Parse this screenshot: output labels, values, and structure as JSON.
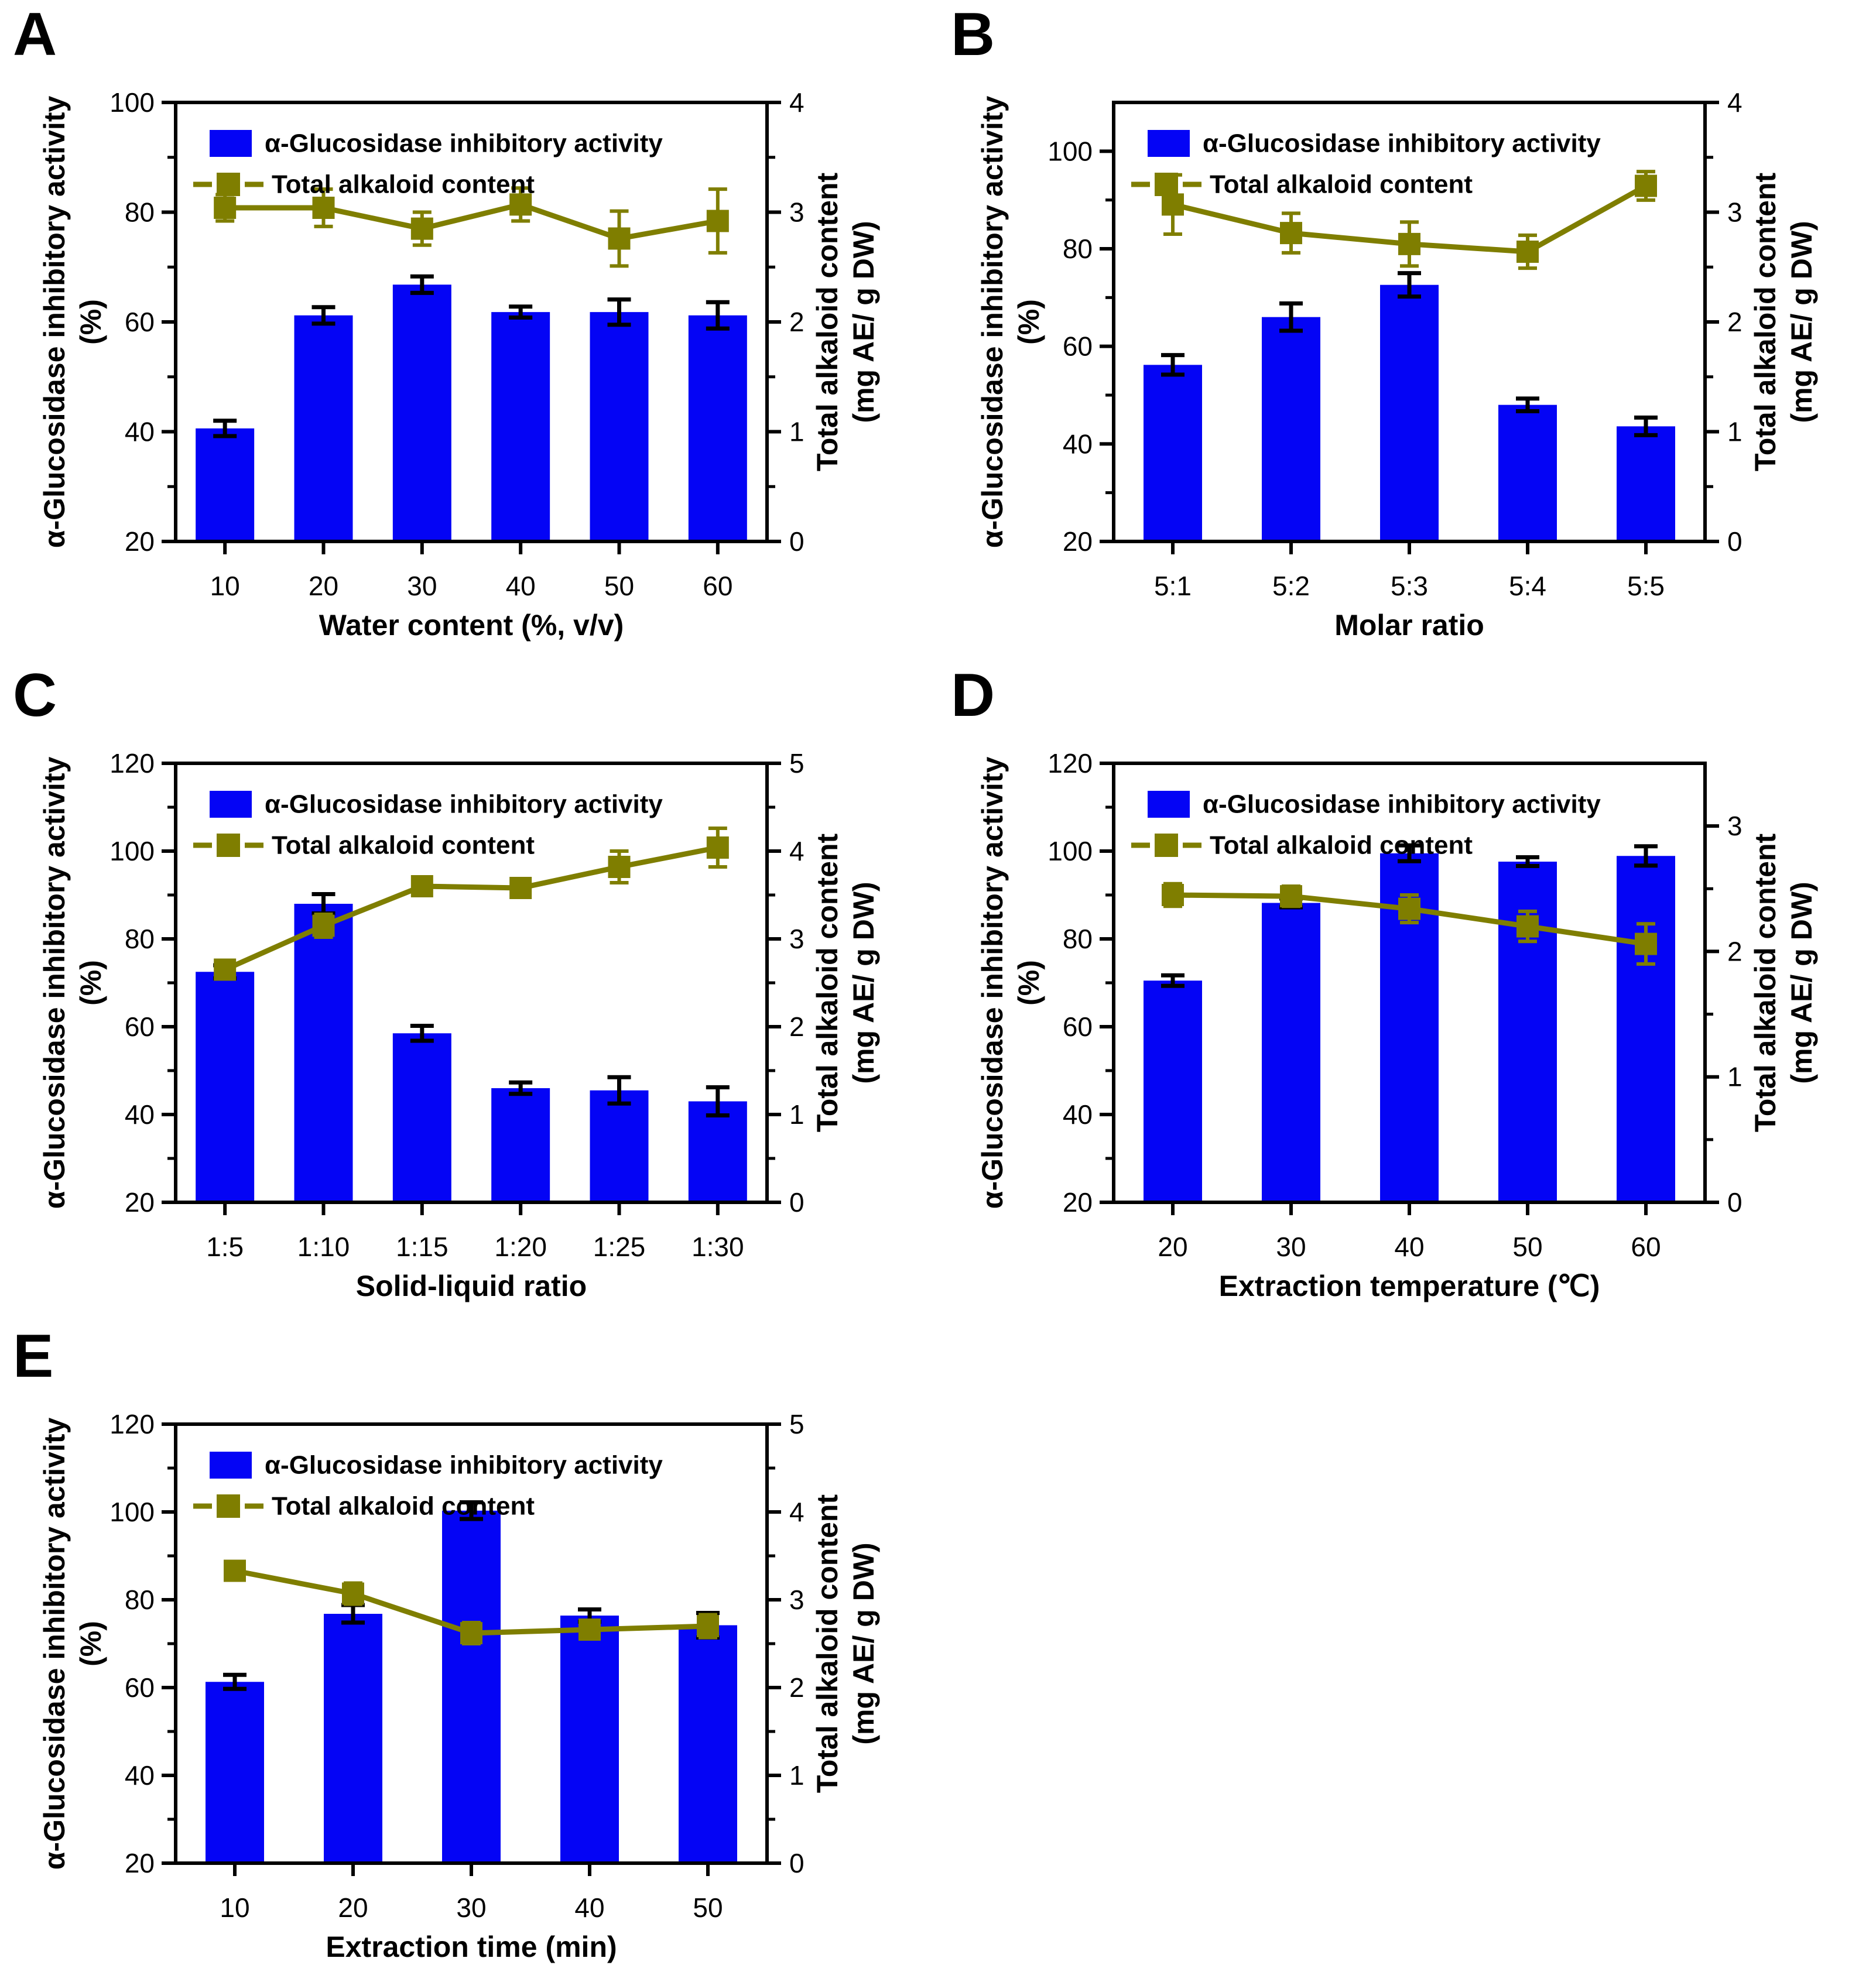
{
  "figure_background": "#ffffff",
  "colors": {
    "bar_fill": "#0404F5",
    "line_series": "#7F7E00",
    "bar_error": "#000000",
    "axis": "#000000",
    "text": "#000000"
  },
  "legend": {
    "bar_label": "α-Glucosidase inhibitory activity",
    "line_label": "Total alkaloid content",
    "position": "top-left-inside"
  },
  "axis_titles": {
    "left_line1": "α-Glucosidase inhibitory activity",
    "left_line2": "(%)",
    "right_line1": "Total alkaloid content",
    "right_line2": "(mg AE/ g DW)"
  },
  "chart_data": [
    {
      "panel_label": "A",
      "type": "bar",
      "subtype": "bar+line-dual-axis",
      "xlabel": "Water content (%, v/v)",
      "categories": [
        "10",
        "20",
        "30",
        "40",
        "50",
        "60"
      ],
      "series": [
        {
          "name": "α-Glucosidase inhibitory activity",
          "plot": "bar",
          "axis": "left",
          "values": [
            40.6,
            61.2,
            66.8,
            61.8,
            61.8,
            61.2
          ],
          "errors": [
            1.4,
            1.5,
            1.5,
            1.0,
            2.3,
            2.4
          ]
        },
        {
          "name": "Total alkaloid content",
          "plot": "line",
          "axis": "right",
          "values": [
            3.04,
            3.04,
            2.85,
            3.07,
            2.76,
            2.92
          ],
          "errors": [
            0.12,
            0.17,
            0.15,
            0.15,
            0.25,
            0.29
          ]
        }
      ],
      "left_axis": {
        "min": 20,
        "max": 100,
        "ticks": [
          20,
          40,
          60,
          80,
          100
        ],
        "minor_step": 10
      },
      "right_axis": {
        "min": 0,
        "max": 4,
        "ticks": [
          0,
          1,
          2,
          3,
          4
        ],
        "minor_step": 0.5
      },
      "grid": false,
      "legend_position": "top-left"
    },
    {
      "panel_label": "B",
      "type": "bar",
      "subtype": "bar+line-dual-axis",
      "xlabel": "Molar ratio",
      "categories": [
        "5:1",
        "5:2",
        "5:3",
        "5:4",
        "5:5"
      ],
      "series": [
        {
          "name": "α-Glucosidase inhibitory activity",
          "plot": "bar",
          "axis": "left",
          "values": [
            56.2,
            66.0,
            72.6,
            48.0,
            43.6
          ],
          "errors": [
            2.0,
            2.8,
            2.4,
            1.3,
            1.8
          ]
        },
        {
          "name": "Total alkaloid content",
          "plot": "line",
          "axis": "right",
          "values": [
            3.07,
            2.81,
            2.71,
            2.64,
            3.24
          ],
          "errors": [
            0.27,
            0.18,
            0.2,
            0.15,
            0.13
          ]
        }
      ],
      "left_axis": {
        "min": 20,
        "max": 110,
        "ticks": [
          20,
          40,
          60,
          80,
          100
        ],
        "minor_step": 10
      },
      "right_axis": {
        "min": 0,
        "max": 4,
        "ticks": [
          0,
          1,
          2,
          3,
          4
        ],
        "minor_step": 0.5
      },
      "grid": false,
      "legend_position": "top-left"
    },
    {
      "panel_label": "C",
      "type": "bar",
      "subtype": "bar+line-dual-axis",
      "xlabel": "Solid-liquid ratio",
      "categories": [
        "1:5",
        "1:10",
        "1:15",
        "1:20",
        "1:25",
        "1:30"
      ],
      "series": [
        {
          "name": "α-Glucosidase inhibitory activity",
          "plot": "bar",
          "axis": "left",
          "values": [
            72.5,
            88.0,
            58.5,
            46.0,
            45.5,
            43.0
          ],
          "errors": [
            1.5,
            2.2,
            1.7,
            1.3,
            3.0,
            3.2
          ]
        },
        {
          "name": "Total alkaloid content",
          "plot": "line",
          "axis": "right",
          "values": [
            2.65,
            3.15,
            3.6,
            3.58,
            3.82,
            4.04
          ],
          "errors": [
            0.1,
            0.13,
            0.1,
            0.1,
            0.18,
            0.22
          ]
        }
      ],
      "left_axis": {
        "min": 20,
        "max": 120,
        "ticks": [
          20,
          40,
          60,
          80,
          100,
          120
        ],
        "minor_step": 10
      },
      "right_axis": {
        "min": 0,
        "max": 5,
        "ticks": [
          0,
          1,
          2,
          3,
          4,
          5
        ],
        "minor_step": 0.5
      },
      "grid": false,
      "legend_position": "top-left"
    },
    {
      "panel_label": "D",
      "type": "bar",
      "subtype": "bar+line-dual-axis",
      "xlabel": "Extraction temperature (℃)",
      "categories": [
        "20",
        "30",
        "40",
        "50",
        "60"
      ],
      "series": [
        {
          "name": "α-Glucosidase inhibitory activity",
          "plot": "bar",
          "axis": "left",
          "values": [
            70.5,
            88.2,
            99.5,
            97.6,
            98.9
          ],
          "errors": [
            1.2,
            1.0,
            1.8,
            1.0,
            2.2
          ]
        },
        {
          "name": "Total alkaloid content",
          "plot": "line",
          "axis": "right",
          "values": [
            2.45,
            2.44,
            2.34,
            2.2,
            2.06
          ],
          "errors": [
            0.09,
            0.08,
            0.11,
            0.12,
            0.16
          ]
        }
      ],
      "left_axis": {
        "min": 20,
        "max": 120,
        "ticks": [
          20,
          40,
          60,
          80,
          100,
          120
        ],
        "minor_step": 10
      },
      "right_axis": {
        "min": 0,
        "max": 3.5,
        "ticks": [
          0,
          1,
          2,
          3
        ],
        "minor_step": 0.5
      },
      "grid": false,
      "legend_position": "top-left"
    },
    {
      "panel_label": "E",
      "type": "bar",
      "subtype": "bar+line-dual-axis",
      "xlabel": "Extraction time (min)",
      "categories": [
        "10",
        "20",
        "30",
        "40",
        "50"
      ],
      "series": [
        {
          "name": "α-Glucosidase inhibitory activity",
          "plot": "bar",
          "axis": "left",
          "values": [
            61.3,
            76.8,
            100.3,
            76.4,
            74.2
          ],
          "errors": [
            1.6,
            2.0,
            1.9,
            1.4,
            2.8
          ]
        },
        {
          "name": "Total alkaloid content",
          "plot": "line",
          "axis": "right",
          "values": [
            3.33,
            3.07,
            2.62,
            2.66,
            2.7
          ],
          "errors": [
            0.07,
            0.12,
            0.12,
            0.1,
            0.13
          ]
        }
      ],
      "left_axis": {
        "min": 20,
        "max": 120,
        "ticks": [
          20,
          40,
          60,
          80,
          100,
          120
        ],
        "minor_step": 10
      },
      "right_axis": {
        "min": 0,
        "max": 5,
        "ticks": [
          0,
          1,
          2,
          3,
          4,
          5
        ],
        "minor_step": 0.5
      },
      "grid": false,
      "legend_position": "top-left"
    }
  ]
}
